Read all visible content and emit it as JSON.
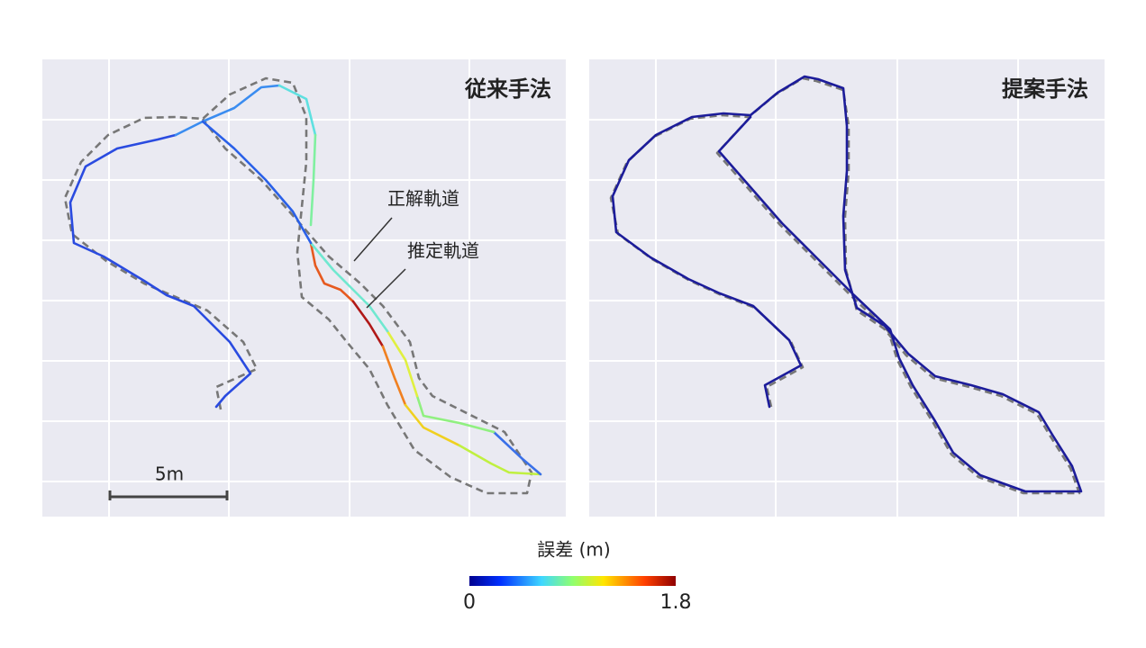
{
  "panels": [
    {
      "title": "従来手法",
      "annotations": [
        "正解軌道",
        "推定軌道"
      ]
    },
    {
      "title": "提案手法"
    }
  ],
  "scale_bar": "5m",
  "colorbar": {
    "label": "誤差 (m)",
    "min": 0,
    "max": 1.8
  }
}
